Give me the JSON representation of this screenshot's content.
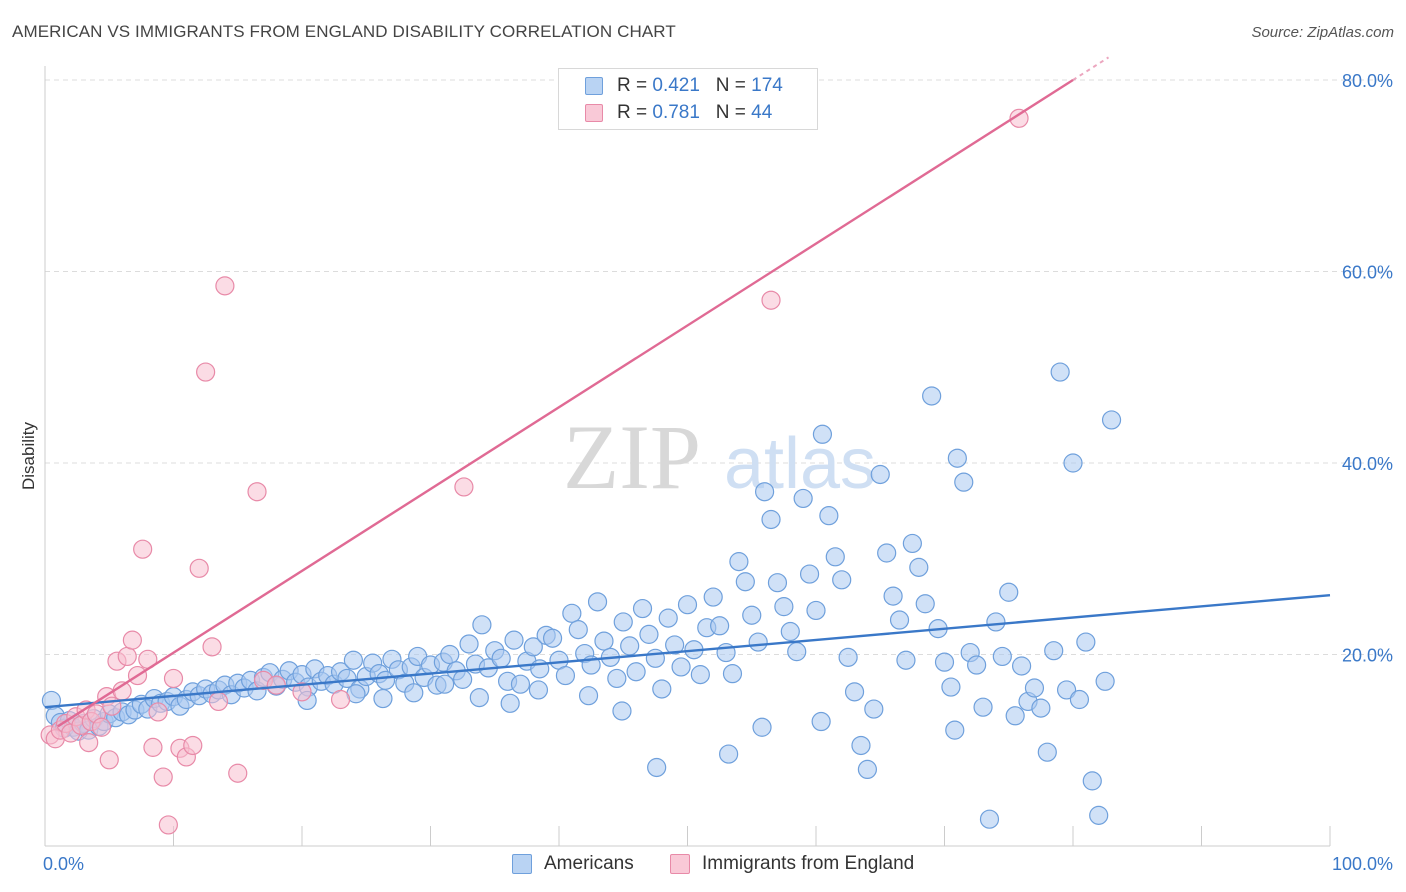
{
  "title": "AMERICAN VS IMMIGRANTS FROM ENGLAND DISABILITY CORRELATION CHART",
  "source": "Source: ZipAtlas.com",
  "watermark": {
    "zip": "ZIP",
    "atlas": "atlas"
  },
  "colors": {
    "americans_fill": "#a9c9f0",
    "americans_stroke": "#6fa0dc",
    "americans_line": "#3a78c8",
    "england_fill": "#f8bfd0",
    "england_stroke": "#e88aa8",
    "england_line": "#e06a94",
    "axis_label": "#3a78c8",
    "grid": "#dcdcdc"
  },
  "legend_top": [
    {
      "r_label": "R = ",
      "r_value": "0.421",
      "n_label": "N = ",
      "n_value": "174"
    },
    {
      "r_label": "R = ",
      "r_value": "0.781",
      "n_label": "N = ",
      "n_value": "44"
    }
  ],
  "legend_bottom": [
    "Americans",
    "Immigrants from England"
  ],
  "chart_data": {
    "type": "scatter",
    "ylabel": "Disability",
    "xlabel": "",
    "xlim": [
      0,
      100
    ],
    "ylim": [
      0,
      80
    ],
    "y_ticks": [
      {
        "value": 20,
        "label": "20.0%"
      },
      {
        "value": 40,
        "label": "40.0%"
      },
      {
        "value": 60,
        "label": "60.0%"
      },
      {
        "value": 80,
        "label": "80.0%"
      }
    ],
    "x_ticks": [
      {
        "value": 0,
        "label": "0.0%"
      },
      {
        "value": 100,
        "label": "100.0%"
      }
    ],
    "series": [
      {
        "name": "Americans",
        "r": 0.421,
        "n": 174,
        "trend": {
          "x": [
            0,
            100
          ],
          "y": [
            14.5,
            26.2
          ]
        },
        "points": [
          [
            0.5,
            15.2
          ],
          [
            0.8,
            13.6
          ],
          [
            1.2,
            12.9
          ],
          [
            1.5,
            12.3
          ],
          [
            1.9,
            13.1
          ],
          [
            2.2,
            12.4
          ],
          [
            2.6,
            12.0
          ],
          [
            3.0,
            12.8
          ],
          [
            3.4,
            12.1
          ],
          [
            3.8,
            13.3
          ],
          [
            4.2,
            12.5
          ],
          [
            4.6,
            13.0
          ],
          [
            5.0,
            13.8
          ],
          [
            5.5,
            13.4
          ],
          [
            6.0,
            14.0
          ],
          [
            6.5,
            13.7
          ],
          [
            7.0,
            14.2
          ],
          [
            7.5,
            14.8
          ],
          [
            8.0,
            14.3
          ],
          [
            8.5,
            15.4
          ],
          [
            9.0,
            14.9
          ],
          [
            9.5,
            15.1
          ],
          [
            10.0,
            15.6
          ],
          [
            10.5,
            14.6
          ],
          [
            11.0,
            15.3
          ],
          [
            11.5,
            16.1
          ],
          [
            12.0,
            15.7
          ],
          [
            12.5,
            16.4
          ],
          [
            13.0,
            15.9
          ],
          [
            13.5,
            16.3
          ],
          [
            14.0,
            16.8
          ],
          [
            14.5,
            15.8
          ],
          [
            15.0,
            17.0
          ],
          [
            15.5,
            16.5
          ],
          [
            16.0,
            17.3
          ],
          [
            16.5,
            16.2
          ],
          [
            17.0,
            17.6
          ],
          [
            17.5,
            18.1
          ],
          [
            18.0,
            16.7
          ],
          [
            18.5,
            17.4
          ],
          [
            19.0,
            18.3
          ],
          [
            19.5,
            17.1
          ],
          [
            20.0,
            17.9
          ],
          [
            20.5,
            16.6
          ],
          [
            21.0,
            18.5
          ],
          [
            21.5,
            17.2
          ],
          [
            22.0,
            17.8
          ],
          [
            22.5,
            16.9
          ],
          [
            23.0,
            18.2
          ],
          [
            23.5,
            17.5
          ],
          [
            24.0,
            19.4
          ],
          [
            24.5,
            16.4
          ],
          [
            25.0,
            17.7
          ],
          [
            25.5,
            19.1
          ],
          [
            26.0,
            18.0
          ],
          [
            26.5,
            17.3
          ],
          [
            27.0,
            19.5
          ],
          [
            27.5,
            18.4
          ],
          [
            28.0,
            17.0
          ],
          [
            28.5,
            18.7
          ],
          [
            29.0,
            19.8
          ],
          [
            29.5,
            17.6
          ],
          [
            30.0,
            18.9
          ],
          [
            30.5,
            16.8
          ],
          [
            31.0,
            19.2
          ],
          [
            31.5,
            20.0
          ],
          [
            32.0,
            18.3
          ],
          [
            32.5,
            17.4
          ],
          [
            33.0,
            21.1
          ],
          [
            33.5,
            19.0
          ],
          [
            34.0,
            23.1
          ],
          [
            34.5,
            18.6
          ],
          [
            35.0,
            20.4
          ],
          [
            35.5,
            19.6
          ],
          [
            36.0,
            17.2
          ],
          [
            36.5,
            21.5
          ],
          [
            37.0,
            16.9
          ],
          [
            37.5,
            19.3
          ],
          [
            38.0,
            20.8
          ],
          [
            38.5,
            18.5
          ],
          [
            39.0,
            22.0
          ],
          [
            39.5,
            21.7
          ],
          [
            40.0,
            19.4
          ],
          [
            40.5,
            17.8
          ],
          [
            41.0,
            24.3
          ],
          [
            41.5,
            22.6
          ],
          [
            42.0,
            20.1
          ],
          [
            42.5,
            18.9
          ],
          [
            43.0,
            25.5
          ],
          [
            43.5,
            21.4
          ],
          [
            44.0,
            19.7
          ],
          [
            44.5,
            17.5
          ],
          [
            45.0,
            23.4
          ],
          [
            45.5,
            20.9
          ],
          [
            46.0,
            18.2
          ],
          [
            46.5,
            24.8
          ],
          [
            47.0,
            22.1
          ],
          [
            47.5,
            19.6
          ],
          [
            48.0,
            16.4
          ],
          [
            48.5,
            23.8
          ],
          [
            49.0,
            21.0
          ],
          [
            49.5,
            18.7
          ],
          [
            50.0,
            25.2
          ],
          [
            50.5,
            20.5
          ],
          [
            51.0,
            17.9
          ],
          [
            51.5,
            22.8
          ],
          [
            52.0,
            26.0
          ],
          [
            52.5,
            23.0
          ],
          [
            53.0,
            20.2
          ],
          [
            53.5,
            18.0
          ],
          [
            54.0,
            29.7
          ],
          [
            54.5,
            27.6
          ],
          [
            55.0,
            24.1
          ],
          [
            55.5,
            21.3
          ],
          [
            56.0,
            37.0
          ],
          [
            56.5,
            34.1
          ],
          [
            57.0,
            27.5
          ],
          [
            57.5,
            25.0
          ],
          [
            58.0,
            22.4
          ],
          [
            58.5,
            20.3
          ],
          [
            59.0,
            36.3
          ],
          [
            59.5,
            28.4
          ],
          [
            60.0,
            24.6
          ],
          [
            60.5,
            43.0
          ],
          [
            61.0,
            34.5
          ],
          [
            61.5,
            30.2
          ],
          [
            62.0,
            27.8
          ],
          [
            62.5,
            19.7
          ],
          [
            63.0,
            16.1
          ],
          [
            63.5,
            10.5
          ],
          [
            64.0,
            8.0
          ],
          [
            64.5,
            14.3
          ],
          [
            65.0,
            38.8
          ],
          [
            65.5,
            30.6
          ],
          [
            66.0,
            26.1
          ],
          [
            66.5,
            23.6
          ],
          [
            67.0,
            19.4
          ],
          [
            67.5,
            31.6
          ],
          [
            68.0,
            29.1
          ],
          [
            68.5,
            25.3
          ],
          [
            69.0,
            47.0
          ],
          [
            69.5,
            22.7
          ],
          [
            70.0,
            19.2
          ],
          [
            70.5,
            16.6
          ],
          [
            71.0,
            40.5
          ],
          [
            71.5,
            38.0
          ],
          [
            72.0,
            20.2
          ],
          [
            72.5,
            18.9
          ],
          [
            73.0,
            14.5
          ],
          [
            73.5,
            2.8
          ],
          [
            74.0,
            23.4
          ],
          [
            74.5,
            19.8
          ],
          [
            75.0,
            26.5
          ],
          [
            75.5,
            13.6
          ],
          [
            76.0,
            18.8
          ],
          [
            76.5,
            15.1
          ],
          [
            77.0,
            16.5
          ],
          [
            77.5,
            14.4
          ],
          [
            78.0,
            9.8
          ],
          [
            78.5,
            20.4
          ],
          [
            79.0,
            49.5
          ],
          [
            79.5,
            16.3
          ],
          [
            80.0,
            40.0
          ],
          [
            80.5,
            15.3
          ],
          [
            81.0,
            21.3
          ],
          [
            81.5,
            6.8
          ],
          [
            82.0,
            3.2
          ],
          [
            82.5,
            17.2
          ],
          [
            83.0,
            44.5
          ],
          [
            70.8,
            12.1
          ],
          [
            60.4,
            13.0
          ],
          [
            55.8,
            12.4
          ],
          [
            53.2,
            9.6
          ],
          [
            47.6,
            8.2
          ],
          [
            44.9,
            14.1
          ],
          [
            42.3,
            15.7
          ],
          [
            38.4,
            16.3
          ],
          [
            36.2,
            14.9
          ],
          [
            33.8,
            15.5
          ],
          [
            31.1,
            16.9
          ],
          [
            28.7,
            16.0
          ],
          [
            26.3,
            15.4
          ],
          [
            24.2,
            15.9
          ],
          [
            20.4,
            15.2
          ]
        ]
      },
      {
        "name": "Immigrants from England",
        "r": 0.781,
        "n": 44,
        "trend": {
          "x": [
            1,
            80
          ],
          "y": [
            12.5,
            80.0
          ]
        },
        "points": [
          [
            0.4,
            11.6
          ],
          [
            0.8,
            11.2
          ],
          [
            1.2,
            12.1
          ],
          [
            1.6,
            12.8
          ],
          [
            2.0,
            11.8
          ],
          [
            2.4,
            13.5
          ],
          [
            2.8,
            12.6
          ],
          [
            3.2,
            14.2
          ],
          [
            3.6,
            13.0
          ],
          [
            4.0,
            13.8
          ],
          [
            4.4,
            12.4
          ],
          [
            4.8,
            15.6
          ],
          [
            5.2,
            14.6
          ],
          [
            5.6,
            19.3
          ],
          [
            6.0,
            16.2
          ],
          [
            6.4,
            19.8
          ],
          [
            6.8,
            21.5
          ],
          [
            7.2,
            17.8
          ],
          [
            7.6,
            31.0
          ],
          [
            8.0,
            19.5
          ],
          [
            8.4,
            10.3
          ],
          [
            8.8,
            14.0
          ],
          [
            9.2,
            7.2
          ],
          [
            9.6,
            2.2
          ],
          [
            10.0,
            17.5
          ],
          [
            10.5,
            10.2
          ],
          [
            11.0,
            9.3
          ],
          [
            11.5,
            10.5
          ],
          [
            12.0,
            29.0
          ],
          [
            12.5,
            49.5
          ],
          [
            13.0,
            20.8
          ],
          [
            13.5,
            15.1
          ],
          [
            14.0,
            58.5
          ],
          [
            15.0,
            7.6
          ],
          [
            16.5,
            37.0
          ],
          [
            17.0,
            17.3
          ],
          [
            18.0,
            16.8
          ],
          [
            20.0,
            16.1
          ],
          [
            23.0,
            15.3
          ],
          [
            32.6,
            37.5
          ],
          [
            56.5,
            57.0
          ],
          [
            75.8,
            76.0
          ],
          [
            5.0,
            9.0
          ],
          [
            3.4,
            10.8
          ]
        ]
      }
    ]
  }
}
